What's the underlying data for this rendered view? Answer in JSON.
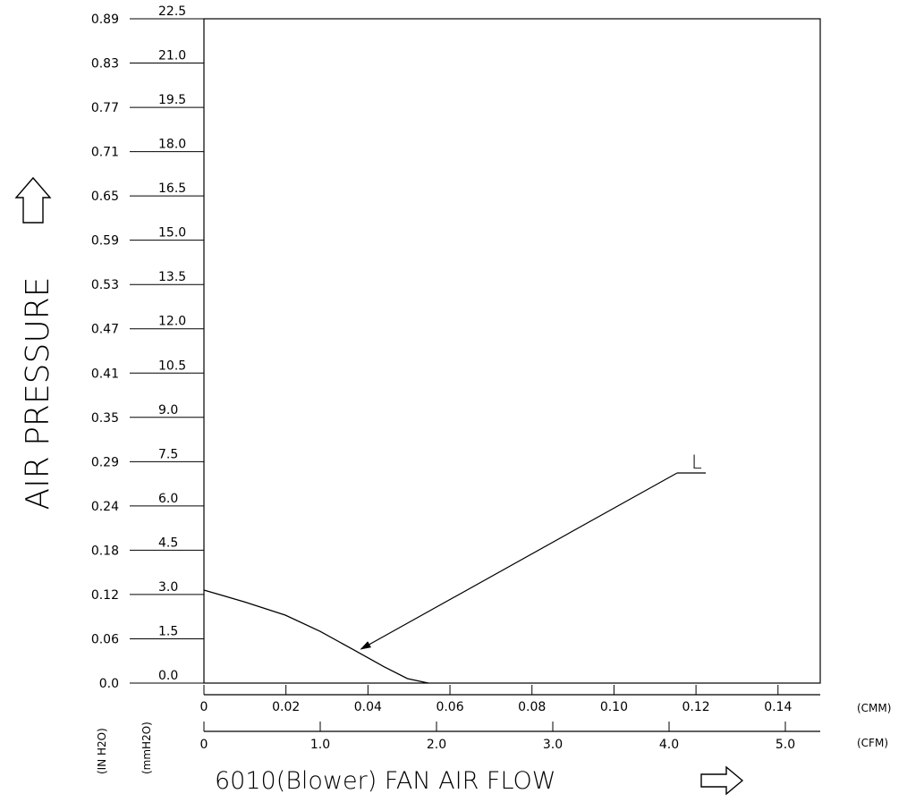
{
  "chart_data": {
    "type": "line",
    "title": "",
    "ylabel": "AIR PRESSURE",
    "xlabel": "6010(Blower) FAN AIR FLOW",
    "y_axes": [
      {
        "unit": "(IN H2O)",
        "ticks": [
          "0.0",
          "0.06",
          "0.12",
          "0.18",
          "0.24",
          "0.29",
          "0.35",
          "0.41",
          "0.47",
          "0.53",
          "0.59",
          "0.65",
          "0.71",
          "0.77",
          "0.83",
          "0.89"
        ]
      },
      {
        "unit": "(mmH2O)",
        "ticks": [
          "0.0",
          "1.5",
          "3.0",
          "4.5",
          "6.0",
          "7.5",
          "9.0",
          "10.5",
          "12.0",
          "13.5",
          "15.0",
          "16.5",
          "18.0",
          "19.5",
          "21.0",
          "22.5"
        ]
      }
    ],
    "ylim": [
      0,
      22.5
    ],
    "x_axes": [
      {
        "unit": "(CMM)",
        "ticks": [
          "0",
          "0.02",
          "0.04",
          "0.06",
          "0.08",
          "0.10",
          "0.12",
          "0.14"
        ],
        "xlim": [
          0,
          0.1503
        ]
      },
      {
        "unit": "(CFM)",
        "ticks": [
          "0",
          "1.0",
          "2.0",
          "3.0",
          "4.0",
          "5.0"
        ],
        "xlim": [
          0,
          5.3
        ]
      }
    ],
    "grid": false,
    "series": [
      {
        "name": "L",
        "x_unit": "CFM",
        "y_unit": "mmH2O",
        "x": [
          0,
          0.35,
          0.7,
          1.0,
          1.3,
          1.55,
          1.75,
          1.93
        ],
        "y": [
          3.15,
          2.75,
          2.3,
          1.75,
          1.1,
          0.55,
          0.15,
          0.0
        ]
      }
    ],
    "annotations": [
      {
        "text": "L",
        "series": "L",
        "points_to_x": 1.35,
        "points_to_y": 1.15
      }
    ]
  }
}
